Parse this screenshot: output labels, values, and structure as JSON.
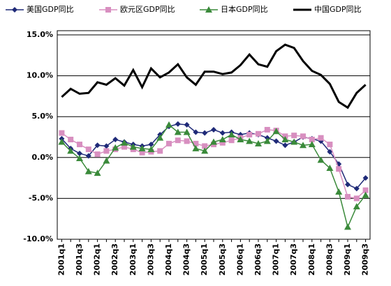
{
  "chart_data": {
    "type": "line",
    "categories": [
      "2001q1",
      null,
      "2001q3",
      null,
      "2002q1",
      null,
      "2002q3",
      null,
      "2003q1",
      null,
      "2003q3",
      null,
      "2004q1",
      null,
      "2004q3",
      null,
      "2005q1",
      null,
      "2005q3",
      null,
      "2006q1",
      null,
      "2006q3",
      null,
      "2007q1",
      null,
      "2007q3",
      null,
      "2008q1",
      null,
      "2008q3",
      null,
      "2009q1",
      null,
      "2009q3"
    ],
    "series": [
      {
        "name": "美国GDP同比",
        "color": "#1f2a78",
        "marker": "diamond",
        "values": [
          2.3,
          1.1,
          0.5,
          0.2,
          1.5,
          1.4,
          2.2,
          1.9,
          1.6,
          1.4,
          1.6,
          2.8,
          3.8,
          4.1,
          4.0,
          3.1,
          3.0,
          3.4,
          3.0,
          3.1,
          2.8,
          3.0,
          2.8,
          2.4,
          2.0,
          1.5,
          1.9,
          2.5,
          2.3,
          2.0,
          0.7,
          -0.8,
          -3.3,
          -3.8,
          -2.5
        ]
      },
      {
        "name": "欧元区GDP同比",
        "color": "#d88fc0",
        "marker": "square",
        "values": [
          3.0,
          2.2,
          1.6,
          1.0,
          0.4,
          0.8,
          1.0,
          1.3,
          1.0,
          0.6,
          0.7,
          0.8,
          1.7,
          2.1,
          2.0,
          1.7,
          1.4,
          1.6,
          1.8,
          2.1,
          2.4,
          2.8,
          2.9,
          3.4,
          3.3,
          2.6,
          2.7,
          2.6,
          2.2,
          2.4,
          1.6,
          -1.4,
          -4.8,
          -5.0,
          -4.0
        ]
      },
      {
        "name": "日本GDP同比",
        "color": "#3a8a3a",
        "marker": "triangle",
        "values": [
          1.9,
          0.8,
          -0.1,
          -1.7,
          -1.9,
          -0.4,
          1.2,
          1.8,
          1.3,
          1.1,
          1.0,
          2.4,
          4.0,
          3.1,
          3.1,
          1.1,
          0.8,
          1.9,
          2.2,
          2.8,
          2.2,
          2.0,
          1.7,
          2.0,
          3.2,
          2.2,
          1.9,
          1.5,
          1.6,
          -0.3,
          -1.3,
          -4.2,
          -8.5,
          -6.0,
          -4.6
        ]
      },
      {
        "name": "中国GDP同比",
        "color": "#000000",
        "marker": "none",
        "values": [
          7.4,
          8.4,
          7.8,
          7.9,
          9.2,
          8.9,
          9.7,
          8.8,
          10.7,
          8.6,
          10.9,
          9.8,
          10.4,
          11.4,
          9.8,
          8.9,
          10.5,
          10.5,
          10.2,
          10.4,
          11.3,
          12.6,
          11.4,
          11.1,
          13.0,
          13.8,
          13.4,
          11.8,
          10.6,
          10.1,
          9.0,
          6.8,
          6.1,
          7.9,
          8.9
        ]
      }
    ],
    "ylim": [
      -10,
      15
    ],
    "yticks": [
      {
        "value": -10,
        "label": "-10.0%"
      },
      {
        "value": -5,
        "label": "-5.0%"
      },
      {
        "value": 0,
        "label": "0.0%"
      },
      {
        "value": 5,
        "label": "5.0%"
      },
      {
        "value": 10,
        "label": "10.0%"
      },
      {
        "value": 15,
        "label": "15.0%"
      }
    ],
    "grid": true,
    "legend": "top"
  }
}
